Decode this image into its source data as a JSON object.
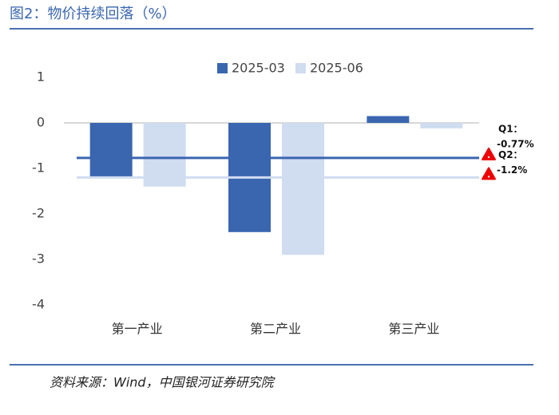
{
  "chart_data": {
    "type": "bar",
    "title": "图2：物价持续回落（%）",
    "source": "资料来源：Wind，中国银河证券研究院",
    "categories": [
      "第一产业",
      "第二产业",
      "第三产业"
    ],
    "series": [
      {
        "name": "2025-03",
        "color": "#3a66b0",
        "values": [
          -1.2,
          -2.4,
          0.15
        ]
      },
      {
        "name": "2025-06",
        "color": "#d0dcf0",
        "values": [
          -1.4,
          -2.9,
          -0.12
        ]
      }
    ],
    "reference_lines": [
      {
        "name": "Q1：",
        "value": -0.77,
        "value_label": "-0.77%",
        "color": "#3a66b0"
      },
      {
        "name": "Q2：",
        "value": -1.2,
        "value_label": "-1.2%",
        "color": "#d0dcf0"
      }
    ],
    "ylim": [
      -4,
      1
    ],
    "yticks": [
      1,
      0,
      -1,
      -2,
      -3,
      -4
    ],
    "grid": false
  }
}
